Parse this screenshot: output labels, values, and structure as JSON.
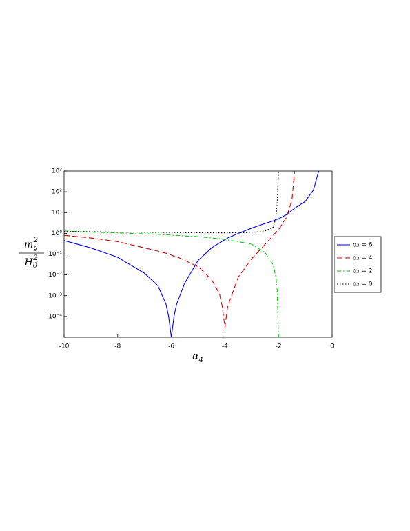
{
  "chart_data": {
    "type": "line",
    "log_y": true,
    "legend": "right",
    "xlabel": {
      "base": "α",
      "sub": "4"
    },
    "ylabel": {
      "numerator": {
        "base": "m",
        "sub": "g",
        "sup": "2"
      },
      "denominator": {
        "base": "H",
        "sub": "0",
        "sup": "2"
      }
    },
    "x": [
      -10,
      -9,
      -8,
      -7,
      -6.5,
      -6.2,
      -6.1,
      -6,
      -5.9,
      -5.8,
      -5.5,
      -5,
      -4.5,
      -4.2,
      -4.1,
      -4,
      -3.9,
      -3.5,
      -3,
      -2.5,
      -2.2,
      -2.1,
      -2.05,
      -2,
      -1.7,
      -1.5,
      -1.4,
      -1,
      -0.7,
      -0.5
    ],
    "xlim": [
      -10,
      0
    ],
    "xticks": [
      -10,
      -8,
      -6,
      -4,
      -2,
      0
    ],
    "ylim": [
      1e-05,
      1000
    ],
    "yticks": [
      {
        "value": 1000,
        "label": "10³"
      },
      {
        "value": 100,
        "label": "10²"
      },
      {
        "value": 10,
        "label": "10¹"
      },
      {
        "value": 1,
        "label": "10⁰"
      },
      {
        "value": 0.1,
        "label": "10⁻¹"
      },
      {
        "value": 0.01,
        "label": "10⁻²"
      },
      {
        "value": 0.001,
        "label": "10⁻³"
      },
      {
        "value": 0.0001,
        "label": "10⁻⁴"
      }
    ],
    "series": [
      {
        "name": "α₃ = 6",
        "color": "#0000ee",
        "line_style": "solid",
        "values": [
          0.45,
          0.2,
          0.07,
          0.012,
          0.003,
          0.0004,
          0.0001,
          1e-05,
          0.0001,
          0.0004,
          0.004,
          0.05,
          0.2,
          0.35,
          0.42,
          0.5,
          0.6,
          1,
          1.8,
          3,
          4,
          4.5,
          4.8,
          5,
          8,
          13,
          16,
          35,
          120,
          1000
        ]
      },
      {
        "name": "α₃ = 4",
        "color": "#dd0000",
        "line_style": "dash",
        "values": [
          0.8,
          0.6,
          0.4,
          0.2,
          0.14,
          0.11,
          0.1,
          0.09,
          0.08,
          0.075,
          0.05,
          0.025,
          0.006,
          0.0012,
          0.0003,
          3e-05,
          0.0003,
          0.008,
          0.06,
          0.3,
          0.8,
          1.1,
          1.3,
          1.5,
          6,
          40,
          1000,
          null,
          null,
          null
        ]
      },
      {
        "name": "α₃ = 2",
        "color": "#00cc00",
        "line_style": "dashdot",
        "values": [
          1.3,
          1.15,
          1.05,
          0.95,
          0.9,
          0.85,
          0.85,
          0.82,
          0.8,
          0.8,
          0.75,
          0.7,
          0.6,
          0.55,
          0.53,
          0.5,
          0.48,
          0.4,
          0.3,
          0.12,
          0.03,
          0.008,
          0.002,
          1e-05,
          null,
          null,
          null,
          null,
          null,
          null
        ]
      },
      {
        "name": "α₃ = 0",
        "color": "#000000",
        "line_style": "dot",
        "values": [
          1.25,
          1.2,
          1.15,
          1.12,
          1.1,
          1.1,
          1.1,
          1.1,
          1.1,
          1.1,
          1.08,
          1.07,
          1.06,
          1.05,
          1.05,
          1.05,
          1.05,
          1.07,
          1.1,
          1.3,
          2,
          5,
          30,
          1000,
          null,
          null,
          null,
          null,
          null,
          null
        ]
      }
    ]
  }
}
